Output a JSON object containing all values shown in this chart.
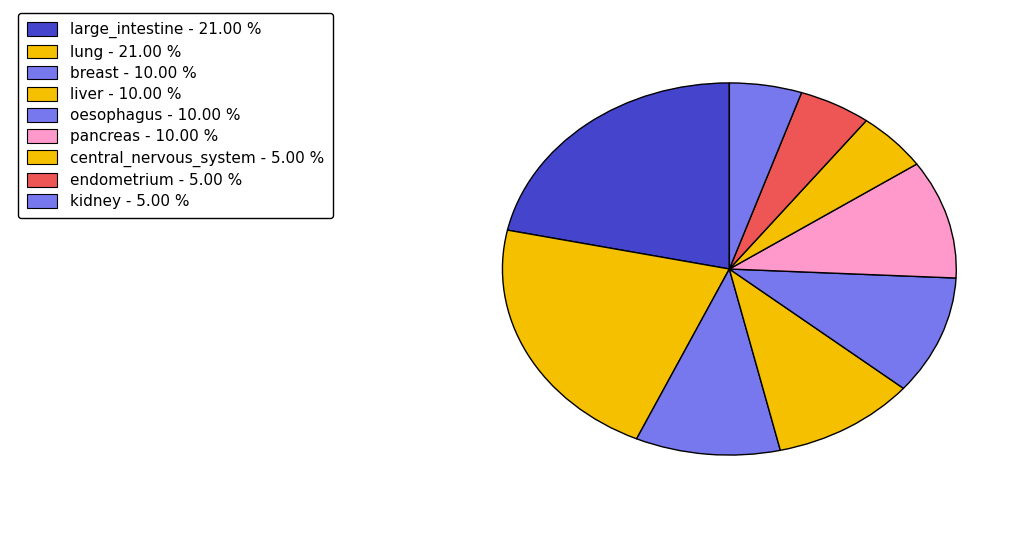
{
  "labels": [
    "large_intestine",
    "lung",
    "breast",
    "liver",
    "oesophagus",
    "pancreas",
    "central_nervous_system",
    "endometrium",
    "kidney"
  ],
  "values": [
    21.0,
    21.0,
    10.0,
    10.0,
    10.0,
    10.0,
    5.0,
    5.0,
    5.0
  ],
  "colors": [
    "#4444cc",
    "#f5c000",
    "#7777ee",
    "#f5c000",
    "#7777ee",
    "#ff99cc",
    "#f5c000",
    "#ee5555",
    "#7777ee"
  ],
  "legend_labels": [
    "large_intestine - 21.00 %",
    "lung - 21.00 %",
    "breast - 10.00 %",
    "liver - 10.00 %",
    "oesophagus - 10.00 %",
    "pancreas - 10.00 %",
    "central_nervous_system - 5.00 %",
    "endometrium - 5.00 %",
    "kidney - 5.00 %"
  ],
  "legend_colors": [
    "#4444cc",
    "#f5c000",
    "#7777ee",
    "#f5c000",
    "#7777ee",
    "#ff99cc",
    "#f5c000",
    "#ee5555",
    "#7777ee"
  ],
  "startangle": 90,
  "figsize": [
    10.13,
    5.38
  ],
  "dpi": 100
}
